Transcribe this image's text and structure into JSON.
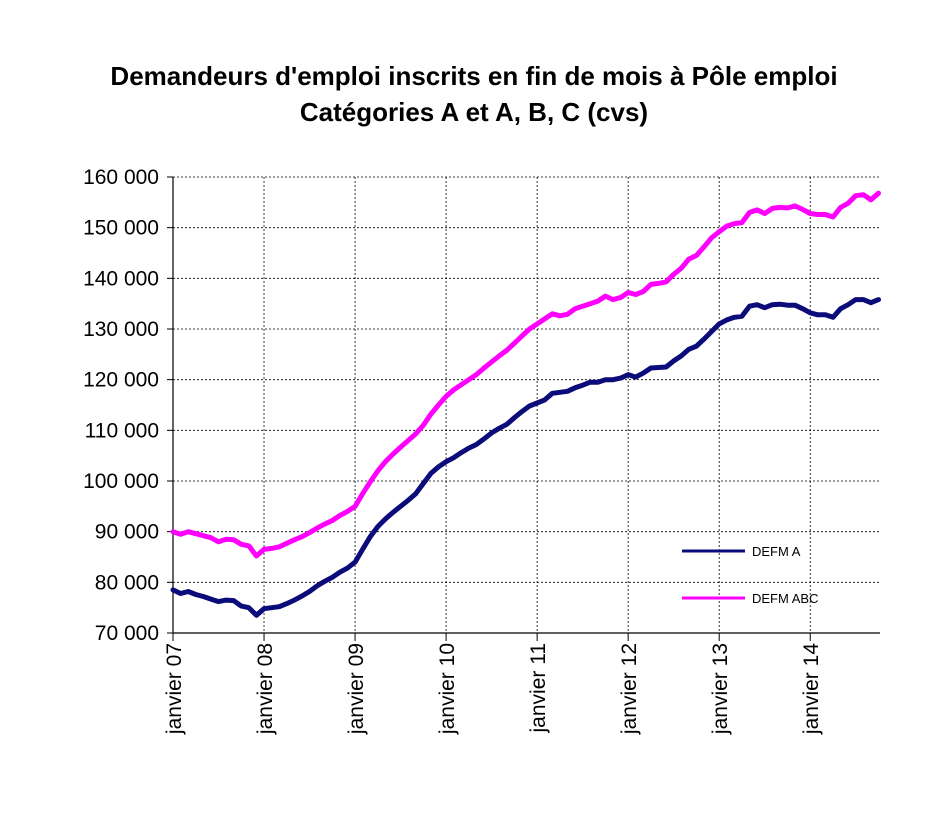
{
  "chart_data": {
    "type": "line",
    "title": "Demandeurs d'emploi inscrits en fin de mois à Pôle emploi",
    "subtitle": "Catégories A et A, B, C (cvs)",
    "x_tick_labels": [
      "janvier 07",
      "janvier 08",
      "janvier 09",
      "janvier 10",
      "janvier 11",
      "janvier 12",
      "janvier 13",
      "janvier 14"
    ],
    "y_tick_labels": [
      "70 000",
      "80 000",
      "90 000",
      "100 000",
      "110 000",
      "120 000",
      "130 000",
      "140 000",
      "150 000",
      "160 000"
    ],
    "ylim": [
      70000,
      160000
    ],
    "y_ticks": [
      70000,
      80000,
      90000,
      100000,
      110000,
      120000,
      130000,
      140000,
      150000,
      160000
    ],
    "x_start": "2007-01",
    "x_end": "2014-10",
    "grid": true,
    "legend_position": "lower-right",
    "series": [
      {
        "name": "DEFM A",
        "color": "#0b0b7a",
        "points": [
          [
            "2007-01",
            78500
          ],
          [
            "2007-02",
            77800
          ],
          [
            "2007-03",
            78200
          ],
          [
            "2007-04",
            77600
          ],
          [
            "2007-05",
            77200
          ],
          [
            "2007-06",
            76700
          ],
          [
            "2007-07",
            76200
          ],
          [
            "2007-08",
            76500
          ],
          [
            "2007-09",
            76400
          ],
          [
            "2007-10",
            75300
          ],
          [
            "2007-11",
            75000
          ],
          [
            "2007-12",
            73500
          ],
          [
            "2008-01",
            74800
          ],
          [
            "2008-02",
            75000
          ],
          [
            "2008-03",
            75200
          ],
          [
            "2008-04",
            75800
          ],
          [
            "2008-05",
            76500
          ],
          [
            "2008-06",
            77300
          ],
          [
            "2008-07",
            78200
          ],
          [
            "2008-08",
            79300
          ],
          [
            "2008-09",
            80200
          ],
          [
            "2008-10",
            81000
          ],
          [
            "2008-11",
            82000
          ],
          [
            "2008-12",
            82800
          ],
          [
            "2009-01",
            84000
          ],
          [
            "2009-02",
            86500
          ],
          [
            "2009-03",
            89000
          ],
          [
            "2009-04",
            91000
          ],
          [
            "2009-05",
            92500
          ],
          [
            "2009-06",
            93800
          ],
          [
            "2009-07",
            95000
          ],
          [
            "2009-08",
            96200
          ],
          [
            "2009-09",
            97500
          ],
          [
            "2009-10",
            99500
          ],
          [
            "2009-11",
            101500
          ],
          [
            "2009-12",
            102800
          ],
          [
            "2010-01",
            103800
          ],
          [
            "2010-02",
            104600
          ],
          [
            "2010-03",
            105600
          ],
          [
            "2010-04",
            106500
          ],
          [
            "2010-05",
            107200
          ],
          [
            "2010-06",
            108300
          ],
          [
            "2010-07",
            109500
          ],
          [
            "2010-08",
            110400
          ],
          [
            "2010-09",
            111200
          ],
          [
            "2010-10",
            112500
          ],
          [
            "2010-11",
            113700
          ],
          [
            "2010-12",
            114800
          ],
          [
            "2011-01",
            115400
          ],
          [
            "2011-02",
            116000
          ],
          [
            "2011-03",
            117300
          ],
          [
            "2011-04",
            117500
          ],
          [
            "2011-05",
            117700
          ],
          [
            "2011-06",
            118400
          ],
          [
            "2011-07",
            118900
          ],
          [
            "2011-08",
            119500
          ],
          [
            "2011-09",
            119500
          ],
          [
            "2011-10",
            120000
          ],
          [
            "2011-11",
            120000
          ],
          [
            "2011-12",
            120300
          ],
          [
            "2012-01",
            121000
          ],
          [
            "2012-02",
            120500
          ],
          [
            "2012-03",
            121300
          ],
          [
            "2012-04",
            122300
          ],
          [
            "2012-05",
            122400
          ],
          [
            "2012-06",
            122500
          ],
          [
            "2012-07",
            123700
          ],
          [
            "2012-08",
            124700
          ],
          [
            "2012-09",
            126000
          ],
          [
            "2012-10",
            126600
          ],
          [
            "2012-11",
            128000
          ],
          [
            "2012-12",
            129500
          ],
          [
            "2013-01",
            131000
          ],
          [
            "2013-02",
            131800
          ],
          [
            "2013-03",
            132300
          ],
          [
            "2013-04",
            132500
          ],
          [
            "2013-05",
            134500
          ],
          [
            "2013-06",
            134800
          ],
          [
            "2013-07",
            134200
          ],
          [
            "2013-08",
            134800
          ],
          [
            "2013-09",
            134900
          ],
          [
            "2013-10",
            134700
          ],
          [
            "2013-11",
            134700
          ],
          [
            "2013-12",
            134000
          ],
          [
            "2014-01",
            133200
          ],
          [
            "2014-02",
            132800
          ],
          [
            "2014-03",
            132800
          ],
          [
            "2014-04",
            132300
          ],
          [
            "2014-05",
            134000
          ],
          [
            "2014-06",
            134800
          ],
          [
            "2014-07",
            135800
          ],
          [
            "2014-08",
            135800
          ],
          [
            "2014-09",
            135200
          ],
          [
            "2014-10",
            135800
          ]
        ]
      },
      {
        "name": "DEFM ABC",
        "color": "#ff00ff",
        "points": [
          [
            "2007-01",
            90000
          ],
          [
            "2007-02",
            89500
          ],
          [
            "2007-03",
            90000
          ],
          [
            "2007-04",
            89600
          ],
          [
            "2007-05",
            89200
          ],
          [
            "2007-06",
            88800
          ],
          [
            "2007-07",
            88000
          ],
          [
            "2007-08",
            88500
          ],
          [
            "2007-09",
            88400
          ],
          [
            "2007-10",
            87500
          ],
          [
            "2007-11",
            87200
          ],
          [
            "2007-12",
            85200
          ],
          [
            "2008-01",
            86500
          ],
          [
            "2008-02",
            86700
          ],
          [
            "2008-03",
            87000
          ],
          [
            "2008-04",
            87700
          ],
          [
            "2008-05",
            88400
          ],
          [
            "2008-06",
            89000
          ],
          [
            "2008-07",
            89800
          ],
          [
            "2008-08",
            90700
          ],
          [
            "2008-09",
            91500
          ],
          [
            "2008-10",
            92200
          ],
          [
            "2008-11",
            93200
          ],
          [
            "2008-12",
            94000
          ],
          [
            "2009-01",
            95000
          ],
          [
            "2009-02",
            97500
          ],
          [
            "2009-03",
            99800
          ],
          [
            "2009-04",
            102000
          ],
          [
            "2009-05",
            103800
          ],
          [
            "2009-06",
            105300
          ],
          [
            "2009-07",
            106700
          ],
          [
            "2009-08",
            108000
          ],
          [
            "2009-09",
            109300
          ],
          [
            "2009-10",
            111000
          ],
          [
            "2009-11",
            113200
          ],
          [
            "2009-12",
            115000
          ],
          [
            "2010-01",
            116700
          ],
          [
            "2010-02",
            118000
          ],
          [
            "2010-03",
            119000
          ],
          [
            "2010-04",
            120000
          ],
          [
            "2010-05",
            121000
          ],
          [
            "2010-06",
            122300
          ],
          [
            "2010-07",
            123500
          ],
          [
            "2010-08",
            124700
          ],
          [
            "2010-09",
            125800
          ],
          [
            "2010-10",
            127200
          ],
          [
            "2010-11",
            128600
          ],
          [
            "2010-12",
            130000
          ],
          [
            "2011-01",
            131000
          ],
          [
            "2011-02",
            132000
          ],
          [
            "2011-03",
            133000
          ],
          [
            "2011-04",
            132600
          ],
          [
            "2011-05",
            132900
          ],
          [
            "2011-06",
            134000
          ],
          [
            "2011-07",
            134500
          ],
          [
            "2011-08",
            135000
          ],
          [
            "2011-09",
            135500
          ],
          [
            "2011-10",
            136500
          ],
          [
            "2011-11",
            135800
          ],
          [
            "2011-12",
            136200
          ],
          [
            "2012-01",
            137200
          ],
          [
            "2012-02",
            136800
          ],
          [
            "2012-03",
            137400
          ],
          [
            "2012-04",
            138800
          ],
          [
            "2012-05",
            139000
          ],
          [
            "2012-06",
            139300
          ],
          [
            "2012-07",
            140800
          ],
          [
            "2012-08",
            142000
          ],
          [
            "2012-09",
            143800
          ],
          [
            "2012-10",
            144500
          ],
          [
            "2012-11",
            146200
          ],
          [
            "2012-12",
            148000
          ],
          [
            "2013-01",
            149200
          ],
          [
            "2013-02",
            150300
          ],
          [
            "2013-03",
            150800
          ],
          [
            "2013-04",
            151000
          ],
          [
            "2013-05",
            153000
          ],
          [
            "2013-06",
            153500
          ],
          [
            "2013-07",
            152800
          ],
          [
            "2013-08",
            153800
          ],
          [
            "2013-09",
            154000
          ],
          [
            "2013-10",
            153900
          ],
          [
            "2013-11",
            154300
          ],
          [
            "2013-12",
            153600
          ],
          [
            "2014-01",
            152800
          ],
          [
            "2014-02",
            152600
          ],
          [
            "2014-03",
            152600
          ],
          [
            "2014-04",
            152100
          ],
          [
            "2014-05",
            154000
          ],
          [
            "2014-06",
            154800
          ],
          [
            "2014-07",
            156300
          ],
          [
            "2014-08",
            156500
          ],
          [
            "2014-09",
            155500
          ],
          [
            "2014-10",
            156800
          ]
        ]
      }
    ]
  }
}
